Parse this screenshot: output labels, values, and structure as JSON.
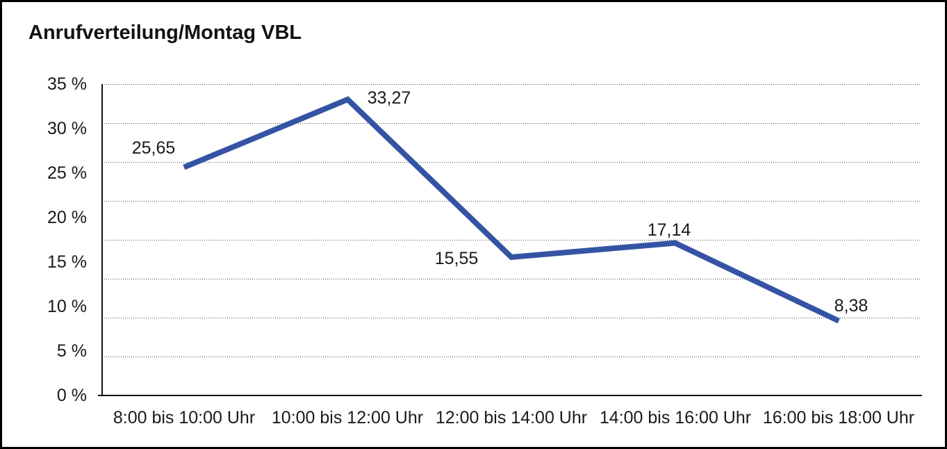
{
  "chart_data": {
    "type": "line",
    "title": "Anrufverteilung/Montag VBL",
    "categories": [
      "8:00 bis 10:00 Uhr",
      "10:00 bis 12:00 Uhr",
      "12:00 bis 14:00 Uhr",
      "14:00 bis 16:00 Uhr",
      "16:00 bis 18:00 Uhr"
    ],
    "values": [
      25.65,
      33.27,
      15.55,
      17.14,
      8.38
    ],
    "data_labels": [
      "25,65",
      "33,27",
      "15,55",
      "17,14",
      "8,38"
    ],
    "y_ticks": [
      "35 %",
      "30 %",
      "25 %",
      "20 %",
      "15 %",
      "10 %",
      "5 %",
      "0 %"
    ],
    "ylim": [
      0,
      35
    ],
    "xlabel": "",
    "ylabel": "",
    "legend": "none",
    "grid": "horizontal-dotted",
    "gridline_count": 8,
    "line_color": "#3454A3",
    "axis_color": "#111111",
    "text_color": "#1a1a1a"
  }
}
